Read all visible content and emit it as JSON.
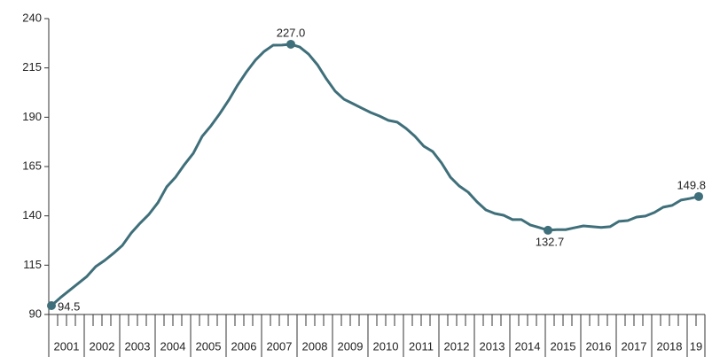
{
  "chart_data": {
    "type": "line",
    "categories": [
      "2001",
      null,
      null,
      null,
      "2002",
      null,
      null,
      null,
      "2003",
      null,
      null,
      null,
      "2004",
      null,
      null,
      null,
      "2005",
      null,
      null,
      null,
      "2006",
      null,
      null,
      null,
      "2007",
      null,
      null,
      null,
      "2008",
      null,
      null,
      null,
      "2009",
      null,
      null,
      null,
      "2010",
      null,
      null,
      null,
      "2011",
      null,
      null,
      null,
      "2012",
      null,
      null,
      null,
      "2013",
      null,
      null,
      null,
      "2014",
      null,
      null,
      null,
      "2015",
      null,
      null,
      null,
      "2016",
      null,
      null,
      null,
      "2017",
      null,
      null,
      null,
      "2018",
      null,
      null,
      null,
      "19",
      null
    ],
    "series": [
      {
        "color": "#3f6f7a",
        "values": [
          94.5,
          98.5,
          102.1,
          105.7,
          109.3,
          114.3,
          117.4,
          121,
          125,
          131.3,
          136.3,
          140.8,
          146.6,
          154.7,
          159.6,
          166,
          171.7,
          180.3,
          185.7,
          191.9,
          198.7,
          206.3,
          213,
          218.9,
          223.4,
          226.5,
          226.6,
          227,
          225.6,
          222,
          216.6,
          209.5,
          203.2,
          199.1,
          196.9,
          194.6,
          192.4,
          190.6,
          188.4,
          187.5,
          184.3,
          180.3,
          175.3,
          172.6,
          166.8,
          159.6,
          155.1,
          152,
          147.1,
          143,
          141.2,
          140.3,
          138.1,
          138.1,
          135.4,
          134.1,
          132.7,
          133,
          133,
          134,
          134.9,
          134.5,
          134.1,
          134.5,
          137.2,
          137.6,
          139.4,
          139.9,
          141.7,
          144.4,
          145.3,
          148,
          148.8,
          149.8
        ],
        "value_labels": [
          "94.5",
          null,
          null,
          null,
          null,
          null,
          null,
          null,
          null,
          null,
          null,
          null,
          null,
          null,
          null,
          null,
          null,
          null,
          null,
          null,
          null,
          null,
          null,
          null,
          null,
          null,
          null,
          "227.0",
          null,
          null,
          null,
          null,
          null,
          null,
          null,
          null,
          null,
          null,
          null,
          null,
          null,
          null,
          null,
          null,
          null,
          null,
          null,
          null,
          null,
          null,
          null,
          null,
          null,
          null,
          null,
          null,
          "132.7",
          null,
          null,
          null,
          null,
          null,
          null,
          null,
          null,
          null,
          null,
          null,
          null,
          null,
          null,
          null,
          null,
          "149.8"
        ]
      }
    ],
    "ylim": [
      90,
      240
    ],
    "yticks": [
      90,
      115,
      140,
      165,
      190,
      215,
      240
    ]
  }
}
